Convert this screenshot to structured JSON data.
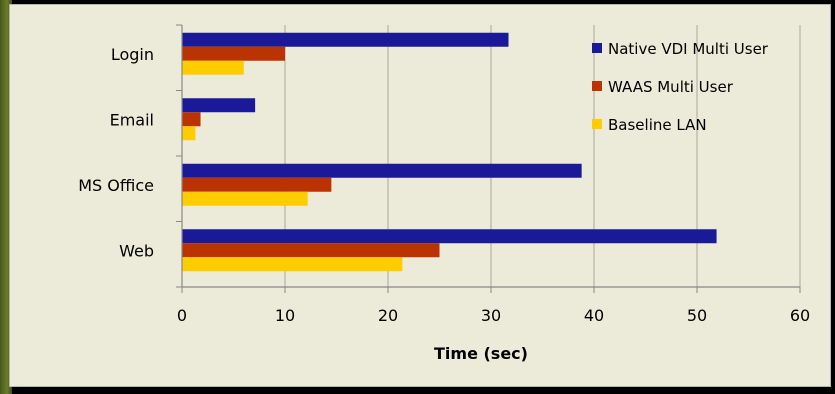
{
  "chart_data": {
    "type": "bar",
    "orientation": "horizontal",
    "categories": [
      "Login",
      "Email",
      "MS Office",
      "Web"
    ],
    "series": [
      {
        "name": "Native VDI Multi User",
        "color": "#1a1a99",
        "values": [
          31.7,
          7.1,
          38.8,
          51.9
        ]
      },
      {
        "name": "WAAS Multi User",
        "color": "#bb3300",
        "values": [
          10.0,
          1.8,
          14.5,
          25.0
        ]
      },
      {
        "name": "Baseline LAN",
        "color": "#ffcc00",
        "values": [
          6.0,
          1.3,
          12.2,
          21.4
        ]
      }
    ],
    "xlabel": "Time (sec)",
    "ylabel": "",
    "title": "",
    "xlim": [
      0,
      60
    ],
    "xticks": [
      "0",
      "10",
      "20",
      "30",
      "40",
      "50",
      "60"
    ],
    "grid": "vertical",
    "legend_position": "top-right"
  }
}
